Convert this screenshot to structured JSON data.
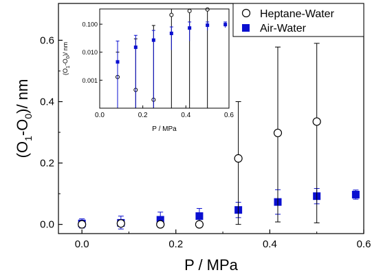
{
  "chart_data": [
    {
      "type": "scatter",
      "xlabel": "P / MPa",
      "ylabel_main": "(O",
      "ylabel_sub1": "1",
      "ylabel_mid": "-O",
      "ylabel_sub0": "0",
      "ylabel_tail": ")/ nm",
      "xlim": [
        -0.05,
        0.6
      ],
      "ylim": [
        -0.03,
        0.72
      ],
      "xticks": [
        0.0,
        0.2,
        0.4,
        0.6
      ],
      "xtick_labels": [
        "0.0",
        "0.2",
        "0.4",
        "0.6"
      ],
      "yticks": [
        0.0,
        0.2,
        0.4,
        0.6
      ],
      "ytick_labels": [
        "0.0",
        "0.2",
        "0.4",
        "0.6"
      ],
      "legend_position": "top-right",
      "grid": false,
      "series": [
        {
          "name": "Heptane-Water",
          "marker": "open-circle",
          "color": "#000000",
          "x": [
            0.0,
            0.083,
            0.167,
            0.25,
            0.333,
            0.417,
            0.5
          ],
          "y": [
            0.0,
            0.003,
            0.0,
            0.0,
            0.215,
            0.298,
            0.335
          ],
          "err_low": [
            0.003,
            0.003,
            0.003,
            0.003,
            0.215,
            0.29,
            0.33
          ],
          "err_high": [
            0.003,
            0.003,
            0.003,
            0.003,
            0.185,
            0.28,
            0.255
          ]
        },
        {
          "name": "Air-Water",
          "marker": "filled-square",
          "color": "#0a0fd0",
          "x": [
            0.0,
            0.083,
            0.167,
            0.25,
            0.333,
            0.417,
            0.5,
            0.583
          ],
          "y": [
            0.003,
            0.005,
            0.015,
            0.027,
            0.047,
            0.073,
            0.092,
            0.097
          ],
          "err_low": [
            0.015,
            0.02,
            0.025,
            0.025,
            0.025,
            0.04,
            0.025,
            0.015
          ],
          "err_high": [
            0.015,
            0.022,
            0.025,
            0.025,
            0.025,
            0.04,
            0.025,
            0.015
          ]
        }
      ]
    },
    {
      "type": "scatter",
      "inset": true,
      "xlabel": "P / MPa",
      "ylabel_main": "(O",
      "ylabel_sub1": "1",
      "ylabel_mid": "-O",
      "ylabel_sub0": "0",
      "ylabel_tail": ")/ nm",
      "xlim": [
        0.0,
        0.6
      ],
      "ylim": [
        0.0001,
        0.35
      ],
      "yscale": "log",
      "xticks": [
        0.0,
        0.2,
        0.4,
        0.6
      ],
      "xtick_labels": [
        "0.0",
        "0.2",
        "0.4",
        "0.6"
      ],
      "yticks": [
        0.001,
        0.01,
        0.1
      ],
      "ytick_labels": [
        "0.001",
        "0.010",
        "0.100"
      ],
      "series": [
        {
          "name": "Heptane-Water",
          "marker": "open-circle",
          "color": "#000000",
          "x": [
            0.083,
            0.167,
            0.25,
            0.333,
            0.417,
            0.5
          ],
          "y": [
            0.0013,
            0.00045,
            0.0002,
            0.215,
            0.298,
            0.335
          ],
          "err_low_to": [
            0.0001,
            0.0001,
            0.0001,
            0.0001,
            0.0001,
            0.0001
          ],
          "err_high_to": [
            0.01,
            0.03,
            0.09,
            0.4,
            0.45,
            0.4
          ]
        },
        {
          "name": "Air-Water",
          "marker": "filled-square",
          "color": "#0a0fd0",
          "x": [
            0.083,
            0.167,
            0.25,
            0.333,
            0.417,
            0.5,
            0.583
          ],
          "y": [
            0.0045,
            0.015,
            0.027,
            0.047,
            0.073,
            0.092,
            0.097
          ],
          "err_low_to": [
            0.0001,
            0.0001,
            0.0001,
            0.012,
            0.025,
            0.06,
            0.075
          ],
          "err_high_to": [
            0.025,
            0.04,
            0.06,
            0.08,
            0.12,
            0.12,
            0.12
          ]
        }
      ]
    }
  ]
}
